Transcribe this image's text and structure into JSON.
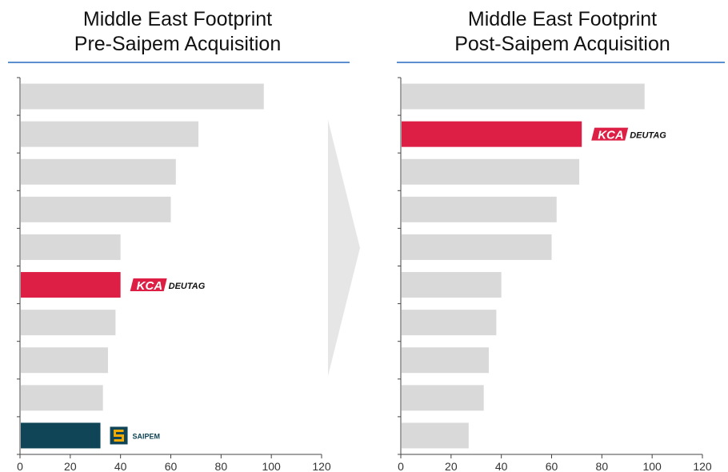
{
  "colors": {
    "bar_default": "#d9d9d9",
    "kca_highlight": "#dd1f45",
    "saipem_highlight": "#0f4557",
    "title_rule": "#5b8fd0",
    "arrow": "#e6e6e6",
    "kca_logo_red": "#dd1f45"
  },
  "chart_data": [
    {
      "type": "bar",
      "orientation": "horizontal",
      "title_lines": [
        "Middle East Footprint",
        "Pre-Saipem Acquisition"
      ],
      "xlim": [
        0,
        120
      ],
      "xticks": [
        0,
        20,
        40,
        60,
        80,
        100,
        120
      ],
      "grid": false,
      "values": [
        97,
        71,
        62,
        60,
        40,
        40,
        38,
        35,
        33,
        32
      ],
      "highlights": {
        "5": "kca",
        "9": "saipem"
      },
      "annotations": [
        {
          "bar": 5,
          "logo": "kca-deutag-logo",
          "text_a": "KCA",
          "text_b": "DEUTAG"
        },
        {
          "bar": 9,
          "logo": "saipem-logo",
          "text": "SAIPEM"
        }
      ]
    },
    {
      "type": "bar",
      "orientation": "horizontal",
      "title_lines": [
        "Middle East Footprint",
        "Post-Saipem Acquisition"
      ],
      "xlim": [
        0,
        120
      ],
      "xticks": [
        0,
        20,
        40,
        60,
        80,
        100,
        120
      ],
      "grid": false,
      "values": [
        97,
        72,
        71,
        62,
        60,
        40,
        38,
        35,
        33,
        27
      ],
      "highlights": {
        "1": "kca"
      },
      "annotations": [
        {
          "bar": 1,
          "logo": "kca-deutag-logo",
          "text_a": "KCA",
          "text_b": "DEUTAG"
        }
      ]
    }
  ],
  "arrow": {
    "icon": "chevron-right-arrow-icon"
  }
}
